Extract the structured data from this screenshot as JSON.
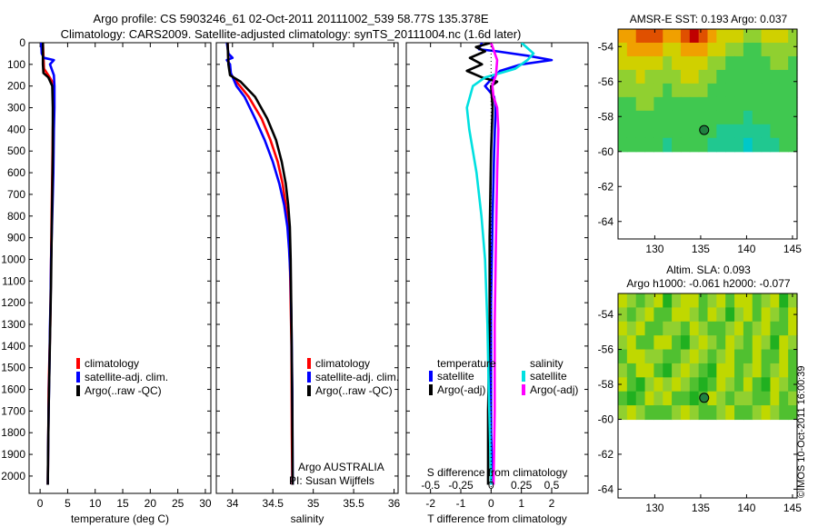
{
  "title_line1": "Argo profile: CS 5903246_61 02-Oct-2011 20111002_539 58.77S 135.378E",
  "title_line2": "Climatology: CARS2009. Satellite-adjusted climatology: synTS_20111004.nc (1.6d later)",
  "side_label": "©IMOS 10-Oct-2011 16:00:39",
  "colors": {
    "climatology": "#ff0000",
    "satellite": "#0000ff",
    "argo": "#000000",
    "temp_sat_diff": "#00e0e0",
    "sal_sat_diff": "#ff00ff"
  },
  "chart_data": [
    {
      "type": "line",
      "xlabel": "temperature (deg C)",
      "ylabel": "",
      "xlim": [
        -2,
        31
      ],
      "ylim": [
        2080,
        0
      ],
      "xticks": [
        0,
        5,
        10,
        15,
        20,
        25,
        30
      ],
      "xtick_labels": [
        "0",
        "5",
        "10",
        "15",
        "20",
        "25",
        "30"
      ],
      "yticks": [
        0,
        100,
        200,
        300,
        400,
        500,
        600,
        700,
        800,
        900,
        1000,
        1100,
        1200,
        1300,
        1400,
        1500,
        1600,
        1700,
        1800,
        1900,
        2000
      ],
      "ytick_labels": [
        "0",
        "100",
        "200",
        "300",
        "400",
        "500",
        "600",
        "700",
        "800",
        "900",
        "1000",
        "1100",
        "1200",
        "1300",
        "1400",
        "1500",
        "1600",
        "1700",
        "1800",
        "1900",
        "2000"
      ],
      "legend": [
        "climatology",
        "satellite-adj. clim.",
        "Argo(..raw -QC)"
      ],
      "legend_position": "lower-right",
      "series": [
        {
          "name": "climatology",
          "color": "#ff0000",
          "x": [
            0.5,
            0.6,
            0.7,
            1.5,
            2.2,
            2.4,
            2.4,
            2.3,
            2.2,
            2.1,
            2.0,
            1.9,
            1.85,
            1.75,
            1.65,
            1.55,
            1.5,
            1.45,
            1.4
          ],
          "y": [
            0,
            60,
            120,
            150,
            180,
            220,
            300,
            400,
            600,
            800,
            1000,
            1200,
            1300,
            1400,
            1500,
            1600,
            1800,
            1900,
            2040
          ]
        },
        {
          "name": "satellite-adj. clim.",
          "color": "#0000ff",
          "x": [
            0.2,
            0.3,
            0.7,
            2.5,
            1.8,
            2.5,
            2.6,
            2.6,
            2.5,
            2.4,
            2.2,
            2.0,
            1.9,
            1.8,
            1.7,
            1.55,
            1.45,
            1.4
          ],
          "y": [
            0,
            50,
            70,
            80,
            100,
            150,
            200,
            300,
            400,
            600,
            800,
            1000,
            1200,
            1300,
            1500,
            1700,
            1900,
            2040
          ]
        },
        {
          "name": "Argo(..raw -QC)",
          "color": "#000000",
          "x": [
            0.5,
            0.5,
            0.6,
            1.5,
            2.2,
            2.3,
            2.3,
            2.2,
            2.1,
            2.0,
            1.85,
            1.7,
            1.55,
            1.45,
            1.4
          ],
          "y": [
            0,
            100,
            140,
            160,
            200,
            300,
            500,
            700,
            900,
            1100,
            1300,
            1500,
            1700,
            1900,
            2040
          ]
        }
      ]
    },
    {
      "type": "line",
      "xlabel": "salinity",
      "ylabel": "",
      "xlim": [
        33.8,
        36.05
      ],
      "ylim": [
        2080,
        0
      ],
      "xticks": [
        34,
        34.5,
        35,
        35.5,
        36
      ],
      "xtick_labels": [
        "34",
        "34.5",
        "35",
        "35.5",
        "36"
      ],
      "legend": [
        "climatology",
        "satellite-adj. clim.",
        "Argo(..raw -QC)"
      ],
      "legend_position": "lower-right",
      "annotations": [
        "Argo AUSTRALIA",
        "PI: Susan Wijffels"
      ],
      "series": [
        {
          "name": "climatology",
          "color": "#ff0000",
          "x": [
            33.94,
            33.95,
            33.97,
            34.05,
            34.2,
            34.36,
            34.47,
            34.56,
            34.62,
            34.66,
            34.69,
            34.71,
            34.72,
            34.73,
            34.735,
            34.74
          ],
          "y": [
            0,
            80,
            140,
            180,
            250,
            350,
            450,
            550,
            650,
            750,
            850,
            1000,
            1200,
            1400,
            1800,
            2040
          ]
        },
        {
          "name": "satellite-adj. clim.",
          "color": "#0000ff",
          "x": [
            33.93,
            33.95,
            34.0,
            33.93,
            33.97,
            33.98,
            34.05,
            34.15,
            34.28,
            34.4,
            34.5,
            34.58,
            34.64,
            34.68,
            34.7,
            34.72,
            34.73,
            34.74,
            34.745
          ],
          "y": [
            0,
            50,
            70,
            80,
            100,
            140,
            200,
            250,
            350,
            450,
            550,
            650,
            750,
            850,
            950,
            1100,
            1300,
            1600,
            2040
          ]
        },
        {
          "name": "Argo(..raw -QC)",
          "color": "#000000",
          "x": [
            33.94,
            33.95,
            33.97,
            34.1,
            34.28,
            34.43,
            34.54,
            34.61,
            34.66,
            34.69,
            34.71,
            34.72,
            34.73,
            34.74,
            34.745
          ],
          "y": [
            0,
            100,
            150,
            180,
            250,
            350,
            450,
            550,
            650,
            750,
            850,
            1000,
            1300,
            1700,
            2040
          ]
        }
      ]
    },
    {
      "type": "line",
      "xlabel": "T difference from climatology",
      "top_xlabel": "S difference from climatology",
      "xlim": [
        -2.8,
        3.2
      ],
      "ylim": [
        2080,
        0
      ],
      "xticks": [
        -2,
        -1,
        0,
        1,
        2
      ],
      "xtick_labels": [
        "-2",
        "-1",
        "0",
        "1",
        "2"
      ],
      "top_xticks": [
        -0.5,
        -0.25,
        0,
        0.25,
        0.5
      ],
      "top_xtick_labels": [
        "-0.5",
        "-0.25",
        "0",
        "0.25",
        "0.5"
      ],
      "legend_groups": [
        {
          "heading": "temperature",
          "items": [
            "satellite",
            "Argo(-adj)"
          ]
        },
        {
          "heading": "salinity",
          "items": [
            "satellite",
            "Argo(-adj)"
          ]
        }
      ],
      "legend_position": "lower",
      "series": [
        {
          "name": "temperature satellite",
          "color": "#0000ff",
          "x": [
            -0.3,
            -0.4,
            0.2,
            1.2,
            2.0,
            1.0,
            0.3,
            0.0,
            -0.2,
            0.1,
            0.15,
            0.1,
            0.05,
            0.0,
            0.0,
            0.0,
            0.05
          ],
          "y": [
            0,
            30,
            40,
            60,
            80,
            100,
            130,
            170,
            200,
            250,
            300,
            500,
            800,
            1200,
            1500,
            1800,
            2040
          ]
        },
        {
          "name": "temperature Argo(-adj)",
          "color": "#000000",
          "x": [
            0.0,
            -0.5,
            -0.2,
            -0.7,
            -0.3,
            -0.8,
            -0.3,
            0.2,
            0.0,
            0.05,
            0.0,
            -0.05,
            -0.05,
            -0.1,
            -0.1
          ],
          "y": [
            0,
            20,
            40,
            70,
            100,
            130,
            160,
            180,
            200,
            300,
            500,
            900,
            1300,
            1700,
            2040
          ]
        },
        {
          "name": "salinity satellite",
          "color": "#00e0e0",
          "x": [
            0.25,
            0.35,
            0.3,
            0.2,
            -0.05,
            -0.15,
            -0.2,
            -0.18,
            -0.12,
            -0.08,
            -0.05,
            -0.03,
            -0.02,
            -0.01,
            0.0
          ],
          "y": [
            0,
            50,
            80,
            120,
            160,
            200,
            300,
            400,
            600,
            800,
            1000,
            1300,
            1600,
            1800,
            2040
          ]
        },
        {
          "name": "salinity Argo(-adj)",
          "color": "#ff00ff",
          "x": [
            0.0,
            0.05,
            0.04,
            0.02,
            0.01,
            0.02,
            0.05,
            0.06,
            0.05,
            0.04,
            0.03,
            0.03,
            0.02
          ],
          "y": [
            0,
            80,
            150,
            180,
            200,
            250,
            300,
            400,
            600,
            900,
            1300,
            1700,
            2040
          ]
        }
      ]
    },
    {
      "type": "heatmap",
      "title": "AMSR-E SST: 0.193 Argo: 0.037",
      "xlim": [
        126,
        145.5
      ],
      "ylim": [
        -65,
        -53
      ],
      "xticks": [
        130,
        135,
        140,
        145
      ],
      "xtick_labels": [
        "130",
        "135",
        "140",
        "145"
      ],
      "yticks": [
        -54,
        -56,
        -58,
        -60,
        -62,
        -64
      ],
      "ytick_labels": [
        "-54",
        "-56",
        "-58",
        "-60",
        "-62",
        "-64"
      ],
      "data_extent": {
        "lon": [
          126,
          145.5
        ],
        "lat": [
          -60,
          -53
        ]
      },
      "marker": {
        "lon": 135.378,
        "lat": -58.77
      },
      "palette": [
        "#00c8c8",
        "#20c890",
        "#40c850",
        "#90d030",
        "#d0d000",
        "#f0a000",
        "#e05000",
        "#c00000"
      ],
      "grid": [
        [
          0.7,
          0.75,
          0.8,
          0.85,
          0.8,
          0.7,
          0.75,
          0.9,
          0.95,
          0.9,
          0.75,
          0.6,
          0.55,
          0.5,
          0.45,
          0.4,
          0.5,
          0.6,
          0.55,
          0.45
        ],
        [
          0.6,
          0.65,
          0.7,
          0.72,
          0.65,
          0.55,
          0.6,
          0.7,
          0.75,
          0.7,
          0.6,
          0.5,
          0.45,
          0.4,
          0.35,
          0.35,
          0.4,
          0.45,
          0.45,
          0.4
        ],
        [
          0.5,
          0.55,
          0.6,
          0.55,
          0.5,
          0.45,
          0.5,
          0.55,
          0.6,
          0.55,
          0.45,
          0.4,
          0.35,
          0.33,
          0.3,
          0.3,
          0.35,
          0.4,
          0.4,
          0.35
        ],
        [
          0.45,
          0.48,
          0.5,
          0.47,
          0.42,
          0.4,
          0.45,
          0.5,
          0.52,
          0.45,
          0.38,
          0.35,
          0.32,
          0.3,
          0.3,
          0.3,
          0.32,
          0.35,
          0.35,
          0.32
        ],
        [
          0.4,
          0.42,
          0.44,
          0.42,
          0.38,
          0.35,
          0.36,
          0.4,
          0.42,
          0.38,
          0.33,
          0.3,
          0.3,
          0.3,
          0.28,
          0.3,
          0.3,
          0.3,
          0.32,
          0.3
        ],
        [
          0.33,
          0.35,
          0.38,
          0.36,
          0.32,
          0.3,
          0.32,
          0.35,
          0.35,
          0.33,
          0.3,
          0.28,
          0.3,
          0.28,
          0.25,
          0.28,
          0.28,
          0.27,
          0.28,
          0.28
        ],
        [
          0.3,
          0.3,
          0.32,
          0.3,
          0.28,
          0.27,
          0.28,
          0.3,
          0.3,
          0.28,
          0.26,
          0.25,
          0.27,
          0.24,
          0.2,
          0.22,
          0.24,
          0.25,
          0.26,
          0.27
        ],
        [
          0.28,
          0.27,
          0.27,
          0.26,
          0.25,
          0.24,
          0.25,
          0.27,
          0.26,
          0.25,
          0.22,
          0.2,
          0.2,
          0.15,
          0.12,
          0.15,
          0.2,
          0.22,
          0.25,
          0.26
        ],
        [
          0.25,
          0.25,
          0.24,
          0.23,
          0.22,
          0.21,
          0.22,
          0.25,
          0.24,
          0.22,
          0.18,
          0.15,
          0.1,
          0.08,
          0.05,
          0.08,
          0.12,
          0.18,
          0.22,
          0.24
        ]
      ]
    },
    {
      "type": "heatmap",
      "title": "Altim. SLA: 0.093",
      "subtitle": "Argo h1000: -0.061 h2000: -0.077",
      "xlim": [
        126,
        145.5
      ],
      "ylim": [
        -64.5,
        -52.8
      ],
      "xticks": [
        130,
        135,
        140,
        145
      ],
      "xtick_labels": [
        "130",
        "135",
        "140",
        "145"
      ],
      "yticks": [
        -54,
        -56,
        -58,
        -60,
        -62,
        -64
      ],
      "ytick_labels": [
        "-54",
        "-56",
        "-58",
        "-60",
        "-62",
        "-64"
      ],
      "data_extent": {
        "lon": [
          126,
          145.5
        ],
        "lat": [
          -60,
          -52.8
        ]
      },
      "marker": {
        "lon": 135.378,
        "lat": -58.77
      },
      "palette": [
        "#00a000",
        "#20b020",
        "#50c030",
        "#90d030",
        "#c0d800",
        "#e0e000",
        "#f0d000"
      ],
      "grid": [
        [
          0.6,
          0.5,
          0.3,
          0.5,
          0.6,
          0.2,
          0.5,
          0.6,
          0.6,
          0.4,
          0.5,
          0.6,
          0.3,
          0.6,
          0.7,
          0.4,
          0.5,
          0.6,
          0.2,
          0.5
        ],
        [
          0.5,
          0.3,
          0.5,
          0.7,
          0.4,
          0.3,
          0.6,
          0.7,
          0.5,
          0.3,
          0.6,
          0.5,
          0.2,
          0.5,
          0.6,
          0.3,
          0.6,
          0.5,
          0.3,
          0.6
        ],
        [
          0.7,
          0.5,
          0.6,
          0.4,
          0.3,
          0.5,
          0.5,
          0.3,
          0.6,
          0.5,
          0.4,
          0.3,
          0.5,
          0.6,
          0.4,
          0.5,
          0.7,
          0.3,
          0.4,
          0.7
        ],
        [
          0.5,
          0.6,
          0.4,
          0.3,
          0.6,
          0.7,
          0.4,
          0.2,
          0.5,
          0.7,
          0.5,
          0.3,
          0.6,
          0.5,
          0.3,
          0.6,
          0.5,
          0.2,
          0.6,
          0.5
        ],
        [
          0.3,
          0.6,
          0.7,
          0.5,
          0.5,
          0.4,
          0.3,
          0.5,
          0.6,
          0.5,
          0.3,
          0.5,
          0.7,
          0.4,
          0.4,
          0.7,
          0.4,
          0.3,
          0.7,
          0.4
        ],
        [
          0.5,
          0.4,
          0.6,
          0.6,
          0.3,
          0.2,
          0.5,
          0.7,
          0.5,
          0.3,
          0.2,
          0.6,
          0.6,
          0.3,
          0.5,
          0.6,
          0.3,
          0.5,
          0.6,
          0.3
        ],
        [
          0.6,
          0.3,
          0.2,
          0.5,
          0.6,
          0.5,
          0.6,
          0.5,
          0.3,
          0.2,
          0.4,
          0.6,
          0.5,
          0.3,
          0.6,
          0.4,
          0.2,
          0.6,
          0.5,
          0.4
        ],
        [
          0.4,
          0.2,
          0.3,
          0.6,
          0.5,
          0.6,
          0.4,
          0.3,
          0.2,
          0.4,
          0.6,
          0.5,
          0.3,
          0.5,
          0.5,
          0.3,
          0.4,
          0.6,
          0.4,
          0.5
        ],
        [
          0.5,
          0.6,
          0.5,
          0.4,
          0.3,
          0.4,
          0.5,
          0.6,
          0.5,
          0.3,
          0.4,
          0.5,
          0.6,
          0.4,
          0.3,
          0.5,
          0.6,
          0.5,
          0.3,
          0.4
        ]
      ]
    }
  ]
}
